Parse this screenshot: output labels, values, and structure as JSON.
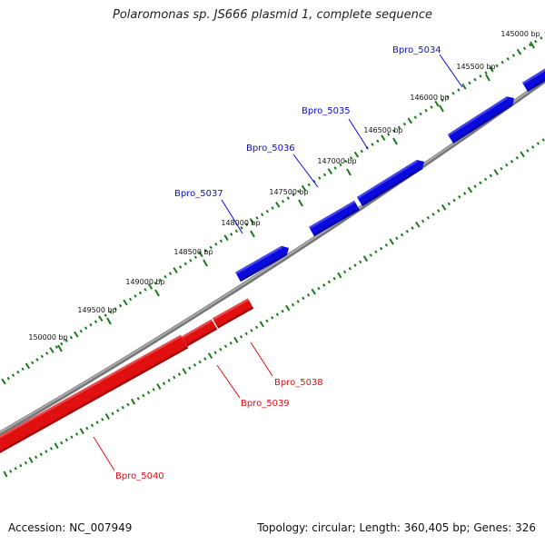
{
  "title": "Polaromonas sp. JS666 plasmid 1, complete sequence",
  "footer": {
    "accession": "Accession: NC_007949",
    "summary": "Topology: circular; Length: 360,405 bp; Genes: 326"
  },
  "colors": {
    "forward_gene": "#0a0adf",
    "reverse_gene": "#e01010",
    "backbone": "#777777",
    "ticks": "#1a7a1a"
  },
  "scale": {
    "ticks_bp": [
      145000,
      145500,
      146000,
      146500,
      147000,
      147500,
      148000,
      148500,
      149000,
      149500,
      150000
    ],
    "label_suffix": " bp"
  },
  "genes": {
    "forward": [
      {
        "name": "Bpro_5034"
      },
      {
        "name": "Bpro_5035"
      },
      {
        "name": "Bpro_5036"
      },
      {
        "name": "Bpro_5037"
      }
    ],
    "reverse": [
      {
        "name": "Bpro_5038"
      },
      {
        "name": "Bpro_5039"
      },
      {
        "name": "Bpro_5040"
      }
    ]
  }
}
